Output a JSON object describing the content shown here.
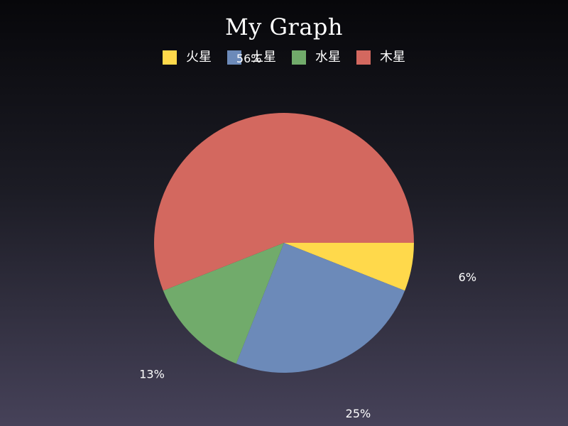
{
  "chart_data": {
    "type": "pie",
    "title": "My Graph",
    "legend_position": "top",
    "slices": [
      {
        "label": "火星",
        "value": 6,
        "display": "6%",
        "color": "#ffd94b"
      },
      {
        "label": "土星",
        "value": 25,
        "display": "25%",
        "color": "#6c8ab9"
      },
      {
        "label": "水星",
        "value": 13,
        "display": "13%",
        "color": "#71ab6b"
      },
      {
        "label": "木星",
        "value": 56,
        "display": "56%",
        "color": "#d3685f"
      }
    ]
  }
}
